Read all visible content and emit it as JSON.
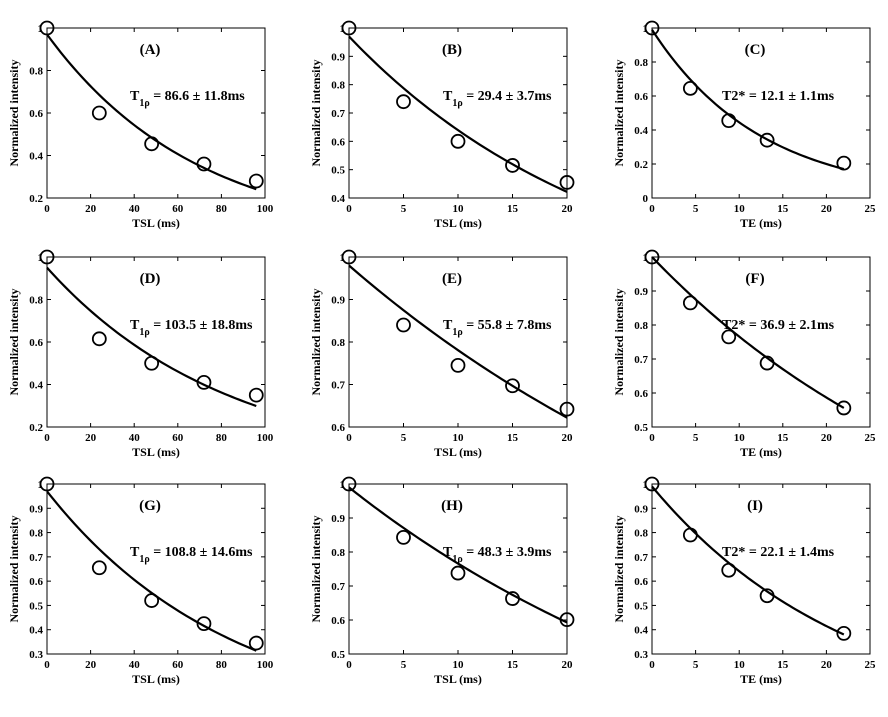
{
  "chart_data": [
    {
      "id": "A",
      "type": "scatter",
      "panel_label": "(A)",
      "xlabel": "TSL (ms)",
      "ylabel": "Normalized intensity",
      "xlim": [
        0,
        100
      ],
      "ylim": [
        0.2,
        1.0
      ],
      "xticks": [
        "0",
        "20",
        "40",
        "60",
        "80",
        "100"
      ],
      "yticks": [
        "0.2",
        "0.4",
        "0.6",
        "0.8",
        "1"
      ],
      "points": {
        "x": [
          0,
          24,
          48,
          72,
          96
        ],
        "y": [
          1.0,
          0.6,
          0.455,
          0.36,
          0.28
        ]
      },
      "fit": {
        "model": "exp",
        "a": 0.97,
        "tau": 69,
        "x_end": 96
      },
      "annotation": {
        "prefix": "T",
        "sub": "1ρ",
        "value": " = 86.6 ± 11.8ms"
      }
    },
    {
      "id": "B",
      "type": "scatter",
      "panel_label": "(B)",
      "xlabel": "TSL (ms)",
      "ylabel": "Normalized intensity",
      "xlim": [
        0,
        20
      ],
      "ylim": [
        0.4,
        1.0
      ],
      "xticks": [
        "0",
        "5",
        "10",
        "15",
        "20"
      ],
      "yticks": [
        "0.4",
        "0.5",
        "0.6",
        "0.7",
        "0.8",
        "0.9",
        "1"
      ],
      "points": {
        "x": [
          0,
          5,
          10,
          15,
          20
        ],
        "y": [
          1.0,
          0.74,
          0.6,
          0.515,
          0.455
        ]
      },
      "fit": {
        "model": "exp",
        "a": 0.97,
        "tau": 24,
        "x_end": 20
      },
      "annotation": {
        "prefix": "T",
        "sub": "1ρ",
        "value": " = 29.4 ± 3.7ms"
      }
    },
    {
      "id": "C",
      "type": "scatter",
      "panel_label": "(C)",
      "xlabel": "TE (ms)",
      "ylabel": "Normalized intensity",
      "xlim": [
        0,
        25
      ],
      "ylim": [
        0,
        1.0
      ],
      "xticks": [
        "0",
        "5",
        "10",
        "15",
        "20",
        "25"
      ],
      "yticks": [
        "0",
        "0.2",
        "0.4",
        "0.6",
        "0.8",
        "1"
      ],
      "points": {
        "x": [
          0,
          4.4,
          8.8,
          13.2,
          22
        ],
        "y": [
          1.0,
          0.645,
          0.455,
          0.34,
          0.205
        ]
      },
      "fit": {
        "model": "exp",
        "a": 0.99,
        "tau": 12.5,
        "x_end": 22
      },
      "annotation": {
        "prefix": "T2* = 12.1 ± 1.1ms",
        "sub": "",
        "value": ""
      }
    },
    {
      "id": "D",
      "type": "scatter",
      "panel_label": "(D)",
      "xlabel": "TSL (ms)",
      "ylabel": "Normalized intensity",
      "xlim": [
        0,
        100
      ],
      "ylim": [
        0.2,
        1.0
      ],
      "xticks": [
        "0",
        "20",
        "40",
        "60",
        "80",
        "100"
      ],
      "yticks": [
        "0.2",
        "0.4",
        "0.6",
        "0.8",
        "1"
      ],
      "points": {
        "x": [
          0,
          24,
          48,
          72,
          96
        ],
        "y": [
          1.0,
          0.615,
          0.5,
          0.41,
          0.35
        ]
      },
      "fit": {
        "model": "exp",
        "a": 0.95,
        "tau": 83,
        "x_end": 96
      },
      "annotation": {
        "prefix": "T",
        "sub": "1ρ",
        "value": " = 103.5 ± 18.8ms"
      }
    },
    {
      "id": "E",
      "type": "scatter",
      "panel_label": "(E)",
      "xlabel": "TSL (ms)",
      "ylabel": "Normalized intensity",
      "xlim": [
        0,
        20
      ],
      "ylim": [
        0.6,
        1.0
      ],
      "xticks": [
        "0",
        "5",
        "10",
        "15",
        "20"
      ],
      "yticks": [
        "0.6",
        "0.7",
        "0.8",
        "0.9",
        "1"
      ],
      "points": {
        "x": [
          0,
          5,
          10,
          15,
          20
        ],
        "y": [
          1.0,
          0.84,
          0.745,
          0.697,
          0.642
        ]
      },
      "fit": {
        "model": "exp",
        "a": 0.98,
        "tau": 44,
        "x_end": 20
      },
      "annotation": {
        "prefix": "T",
        "sub": "1ρ",
        "value": " = 55.8 ± 7.8ms"
      }
    },
    {
      "id": "F",
      "type": "scatter",
      "panel_label": "(F)",
      "xlabel": "TE (ms)",
      "ylabel": "Normalized intensity",
      "xlim": [
        0,
        25
      ],
      "ylim": [
        0.5,
        1.0
      ],
      "xticks": [
        "0",
        "5",
        "10",
        "15",
        "20",
        "25"
      ],
      "yticks": [
        "0.5",
        "0.6",
        "0.7",
        "0.8",
        "0.9",
        "1"
      ],
      "points": {
        "x": [
          0,
          4.4,
          8.8,
          13.2,
          22
        ],
        "y": [
          1.0,
          0.865,
          0.765,
          0.688,
          0.556
        ]
      },
      "fit": {
        "model": "exp",
        "a": 1.0,
        "tau": 37.5,
        "x_end": 22
      },
      "annotation": {
        "prefix": "T2* = 36.9 ± 2.1ms",
        "sub": "",
        "value": ""
      }
    },
    {
      "id": "G",
      "type": "scatter",
      "panel_label": "(G)",
      "xlabel": "TSL (ms)",
      "ylabel": "Normalized intensity",
      "xlim": [
        0,
        100
      ],
      "ylim": [
        0.3,
        1.0
      ],
      "xticks": [
        "0",
        "20",
        "40",
        "60",
        "80",
        "100"
      ],
      "yticks": [
        "0.3",
        "0.4",
        "0.5",
        "0.6",
        "0.7",
        "0.8",
        "0.9",
        "1"
      ],
      "points": {
        "x": [
          0,
          24,
          48,
          72,
          96
        ],
        "y": [
          1.0,
          0.655,
          0.52,
          0.425,
          0.345
        ]
      },
      "fit": {
        "model": "exp",
        "a": 0.97,
        "tau": 85,
        "x_end": 96
      },
      "annotation": {
        "prefix": "T",
        "sub": "1ρ",
        "value": " = 108.8 ± 14.6ms"
      }
    },
    {
      "id": "H",
      "type": "scatter",
      "panel_label": "(H)",
      "xlabel": "TSL (ms)",
      "ylabel": "Normalized intensity",
      "xlim": [
        0,
        20
      ],
      "ylim": [
        0.5,
        1.0
      ],
      "xticks": [
        "0",
        "5",
        "10",
        "15",
        "20"
      ],
      "yticks": [
        "0.5",
        "0.6",
        "0.7",
        "0.8",
        "0.9",
        "1"
      ],
      "points": {
        "x": [
          0,
          5,
          10,
          15,
          20
        ],
        "y": [
          1.0,
          0.843,
          0.738,
          0.663,
          0.601
        ]
      },
      "fit": {
        "model": "exp",
        "a": 0.99,
        "tau": 39,
        "x_end": 20
      },
      "annotation": {
        "prefix": "T",
        "sub": "1ρ",
        "value": " = 48.3 ± 3.9ms"
      }
    },
    {
      "id": "I",
      "type": "scatter",
      "panel_label": "(I)",
      "xlabel": "TE (ms)",
      "ylabel": "Normalized intensity",
      "xlim": [
        0,
        25
      ],
      "ylim": [
        0.3,
        1.0
      ],
      "xticks": [
        "0",
        "5",
        "10",
        "15",
        "20",
        "25"
      ],
      "yticks": [
        "0.3",
        "0.4",
        "0.5",
        "0.6",
        "0.7",
        "0.8",
        "0.9",
        "1"
      ],
      "points": {
        "x": [
          0,
          4.4,
          8.8,
          13.2,
          22
        ],
        "y": [
          1.0,
          0.79,
          0.645,
          0.54,
          0.385
        ]
      },
      "fit": {
        "model": "exp",
        "a": 0.99,
        "tau": 23,
        "x_end": 22
      },
      "annotation": {
        "prefix": "T2* = 22.1 ± 1.4ms",
        "sub": "",
        "value": ""
      }
    }
  ]
}
